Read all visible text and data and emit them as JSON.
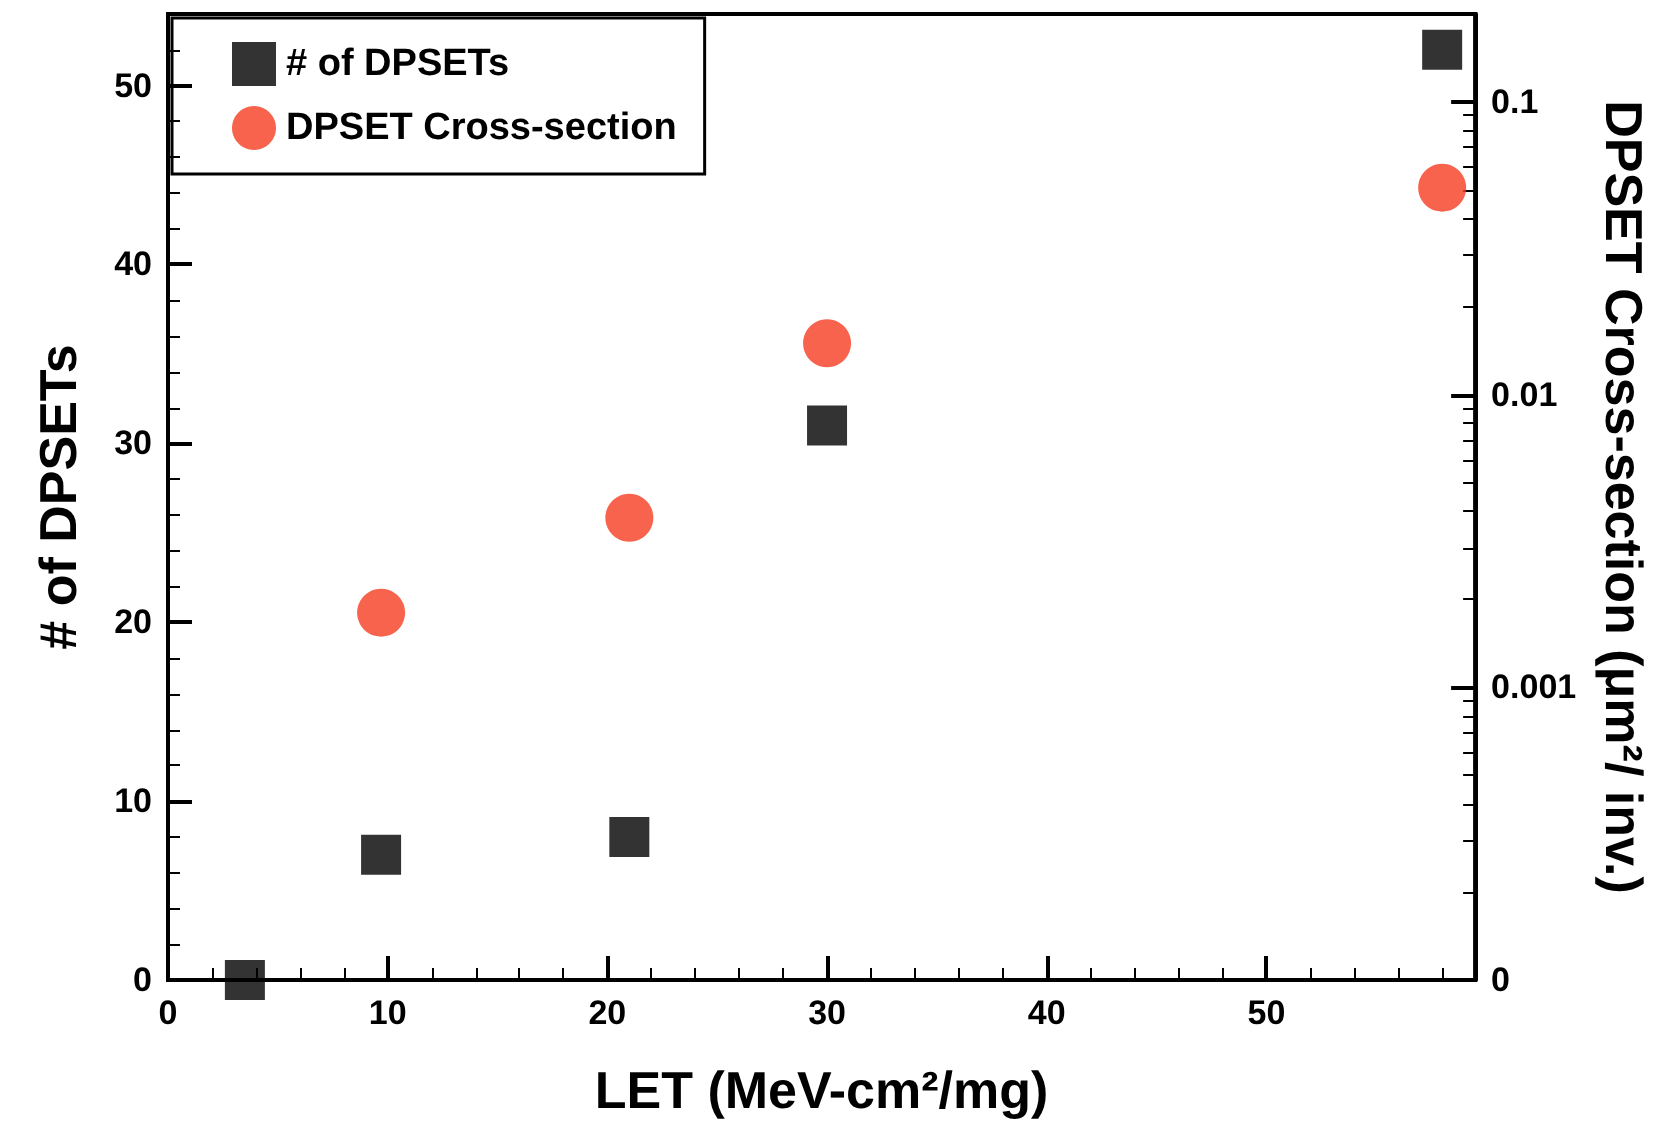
{
  "chart_data": {
    "type": "scatter",
    "xlabel": "LET (MeV-cm²/mg)",
    "ylabel": "# of DPSETs",
    "y2label": "DPSET Cross-section (μm²/ inv.)",
    "x": [
      3.5,
      9.7,
      21,
      30,
      58
    ],
    "series": [
      {
        "name": "# of DPSETs",
        "color": "#000000",
        "marker": "square",
        "values": [
          0,
          7,
          8,
          31,
          52
        ]
      },
      {
        "name": "DPSET Cross-section",
        "color": "#f53c1f",
        "marker": "circle",
        "axis": "y2",
        "values": [
          null,
          0.0018,
          0.0038,
          0.015,
          0.051
        ]
      }
    ],
    "xlim": [
      0,
      59.5
    ],
    "xticks": [
      0,
      10,
      20,
      30,
      40,
      50
    ],
    "ylim": [
      0,
      54
    ],
    "yticks": [
      0,
      10,
      20,
      30,
      40,
      50
    ],
    "y2lim": [
      0.0001,
      0.2
    ],
    "y2ticks": [
      {
        "value": 0.0001,
        "label": "0"
      },
      0.001,
      0.01,
      0.1
    ],
    "log": "y2",
    "grid": false,
    "legend": "top left"
  }
}
